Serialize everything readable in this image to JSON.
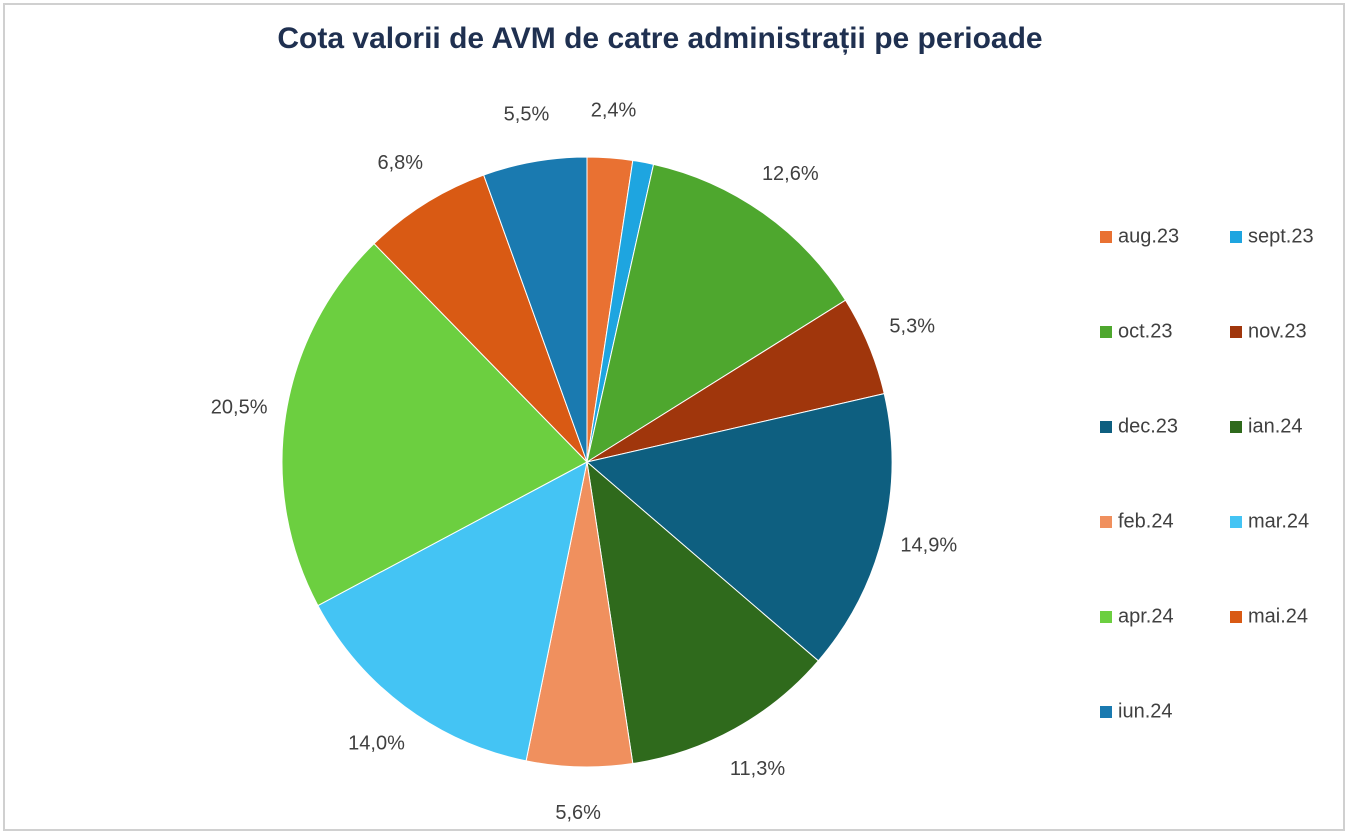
{
  "chart_data": {
    "type": "pie",
    "title": "Cota valorii de AVM de catre administrații pe perioade",
    "categories": [
      "aug.23",
      "sept.23",
      "oct.23",
      "nov.23",
      "dec.23",
      "ian.24",
      "feb.24",
      "mar.24",
      "apr.24",
      "mai.24",
      "iun.24"
    ],
    "values": [
      2.4,
      1.1,
      12.6,
      5.3,
      14.9,
      11.3,
      5.6,
      14.0,
      20.5,
      6.8,
      5.5
    ],
    "value_labels": [
      "2,4%",
      null,
      "12,6%",
      "5,3%",
      "14,9%",
      "11,3%",
      "5,6%",
      "14,0%",
      "20,5%",
      "6,8%",
      "5,5%"
    ],
    "colors": [
      "#e97132",
      "#1ea5e0",
      "#4ea72e",
      "#a0360c",
      "#0e5f80",
      "#2f6a1c",
      "#f0905e",
      "#44c4f4",
      "#6ccf40",
      "#d95a14",
      "#1a7ab0"
    ],
    "legend": "right"
  }
}
